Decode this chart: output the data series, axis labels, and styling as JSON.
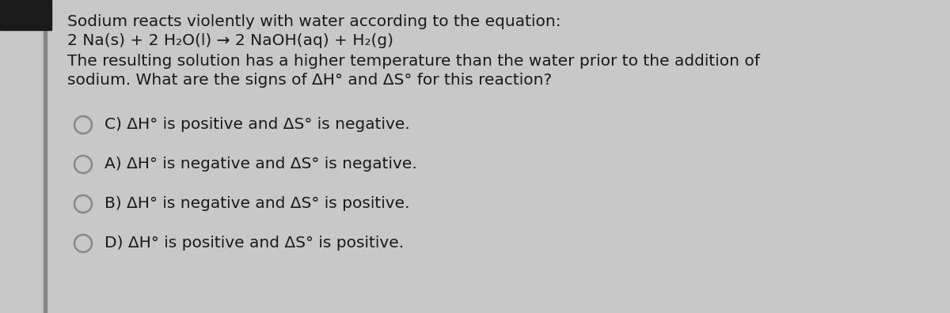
{
  "bg_color": "#c8c8c8",
  "panel_color": "#e2e2e2",
  "text_color": "#1a1a1a",
  "left_strip_color": "#888888",
  "black_rect_color": "#1a1a1a",
  "paragraph1": "Sodium reacts violently with water according to the equation:",
  "paragraph2": "2 Na(s) + 2 H₂O(l) → 2 NaOH(aq) + H₂(g)",
  "paragraph3_line1": "The resulting solution has a higher temperature than the water prior to the addition of",
  "paragraph3_line2": "sodium. What are the signs of ΔH° and ΔS° for this reaction?",
  "options": [
    "C) ΔH° is positive and ΔS° is negative.",
    "A) ΔH° is negative and ΔS° is negative.",
    "B) ΔH° is negative and ΔS° is positive.",
    "D) ΔH° is positive and ΔS° is positive."
  ],
  "font_size": 14.5,
  "circle_color": "#888888",
  "figsize": [
    12.0,
    3.96
  ],
  "dpi": 100
}
